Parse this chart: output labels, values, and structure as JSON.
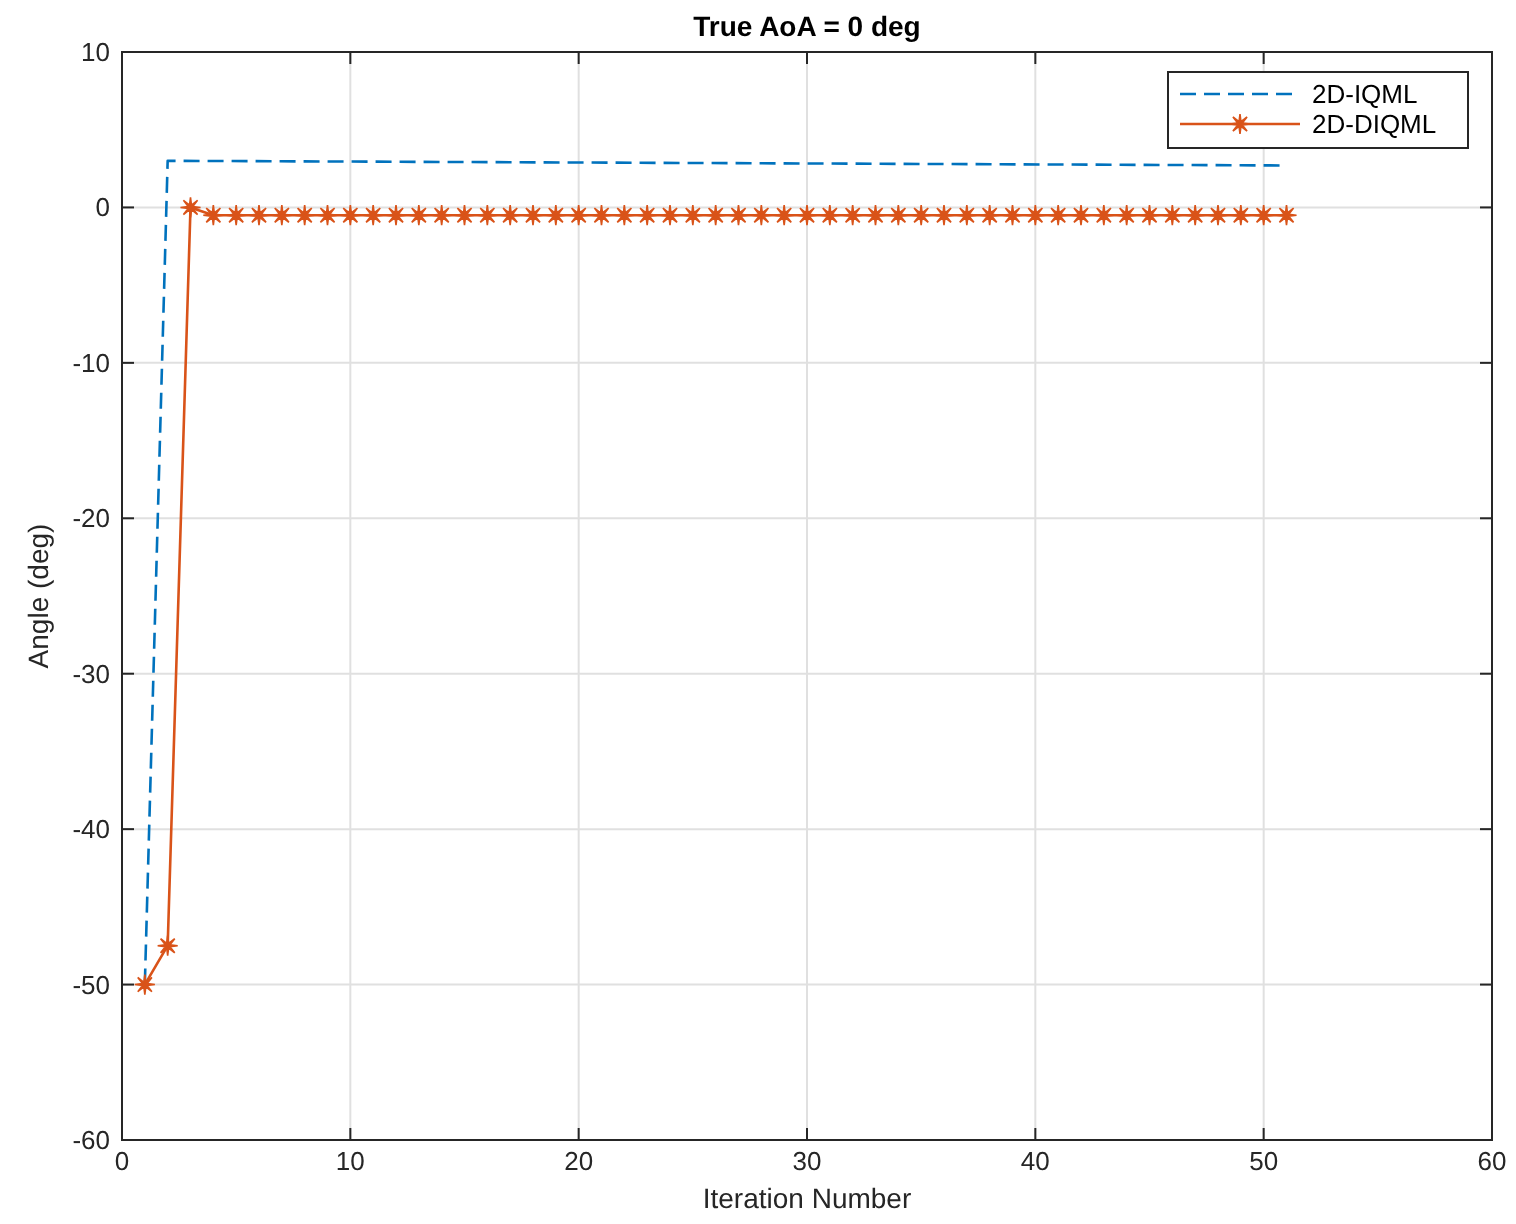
{
  "chart_data": {
    "type": "line",
    "title": "True AoA = 0 deg",
    "xlabel": "Iteration Number",
    "ylabel": "Angle (deg)",
    "xlim": [
      0,
      60
    ],
    "xticks": [
      0,
      10,
      20,
      30,
      40,
      50,
      60
    ],
    "ylim": [
      -60,
      10
    ],
    "yticks": [
      -60,
      -50,
      -40,
      -30,
      -20,
      -10,
      0,
      10
    ],
    "grid": true,
    "legend": "top right",
    "series": [
      {
        "name": "2D-IQML",
        "color": "#0072bd",
        "line_style": "dashed",
        "marker": "none",
        "x": [
          1,
          2,
          51
        ],
        "values": [
          -50,
          3,
          2.7
        ]
      },
      {
        "name": "2D-DIQML",
        "color": "#d95319",
        "line_style": "solid",
        "marker": "star",
        "x": [
          1,
          2,
          3,
          4,
          5,
          6,
          7,
          8,
          9,
          10,
          11,
          12,
          13,
          14,
          15,
          16,
          17,
          18,
          19,
          20,
          21,
          22,
          23,
          24,
          25,
          26,
          27,
          28,
          29,
          30,
          31,
          32,
          33,
          34,
          35,
          36,
          37,
          38,
          39,
          40,
          41,
          42,
          43,
          44,
          45,
          46,
          47,
          48,
          49,
          50,
          51
        ],
        "values": [
          -50,
          -47.5,
          0,
          -0.5,
          -0.5,
          -0.5,
          -0.5,
          -0.5,
          -0.5,
          -0.5,
          -0.5,
          -0.5,
          -0.5,
          -0.5,
          -0.5,
          -0.5,
          -0.5,
          -0.5,
          -0.5,
          -0.5,
          -0.5,
          -0.5,
          -0.5,
          -0.5,
          -0.5,
          -0.5,
          -0.5,
          -0.5,
          -0.5,
          -0.5,
          -0.5,
          -0.5,
          -0.5,
          -0.5,
          -0.5,
          -0.5,
          -0.5,
          -0.5,
          -0.5,
          -0.5,
          -0.5,
          -0.5,
          -0.5,
          -0.5,
          -0.5,
          -0.5,
          -0.5,
          -0.5,
          -0.5,
          -0.5,
          -0.5
        ]
      }
    ]
  }
}
